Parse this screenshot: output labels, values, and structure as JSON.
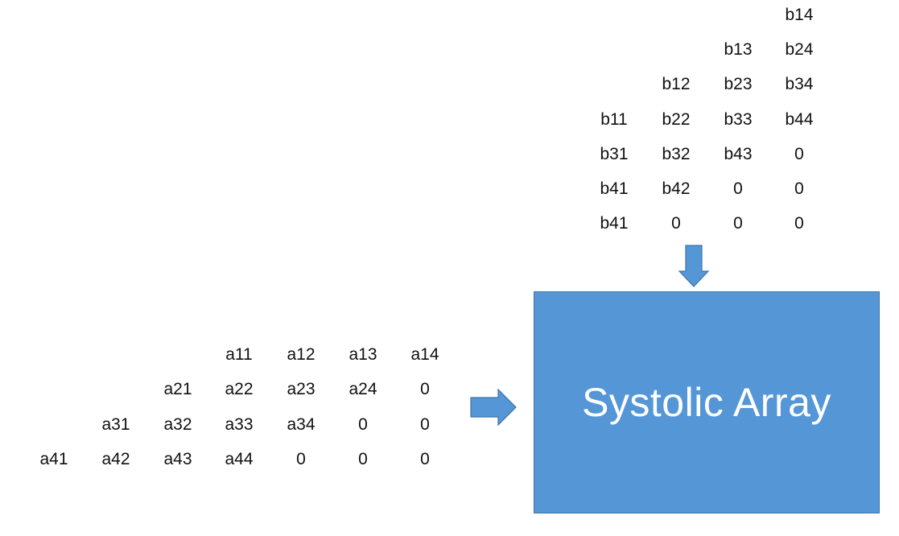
{
  "b_matrix_rows": [
    [
      "",
      "",
      "",
      "b14"
    ],
    [
      "",
      "",
      "b13",
      "b24"
    ],
    [
      "",
      "b12",
      "b23",
      "b34"
    ],
    [
      "b11",
      "b22",
      "b33",
      "b44"
    ],
    [
      "b31",
      "b32",
      "b43",
      "0"
    ],
    [
      "b41",
      "b42",
      "0",
      "0"
    ],
    [
      "b41",
      "0",
      "0",
      "0"
    ]
  ],
  "a_matrix_rows": [
    [
      "",
      "",
      "",
      "a11",
      "a12",
      "a13",
      "a14"
    ],
    [
      "",
      "",
      "a21",
      "a22",
      "a23",
      "a24",
      "0"
    ],
    [
      "",
      "a31",
      "a32",
      "a33",
      "a34",
      "0",
      "0"
    ],
    [
      "a41",
      "a42",
      "a43",
      "a44",
      "0",
      "0",
      "0"
    ]
  ],
  "systolic_array": {
    "label": "Systolic Array",
    "fill_color": "#5597d6"
  },
  "arrows": {
    "color": "#5597d6",
    "down": "down-arrow-icon",
    "right": "right-arrow-icon"
  }
}
